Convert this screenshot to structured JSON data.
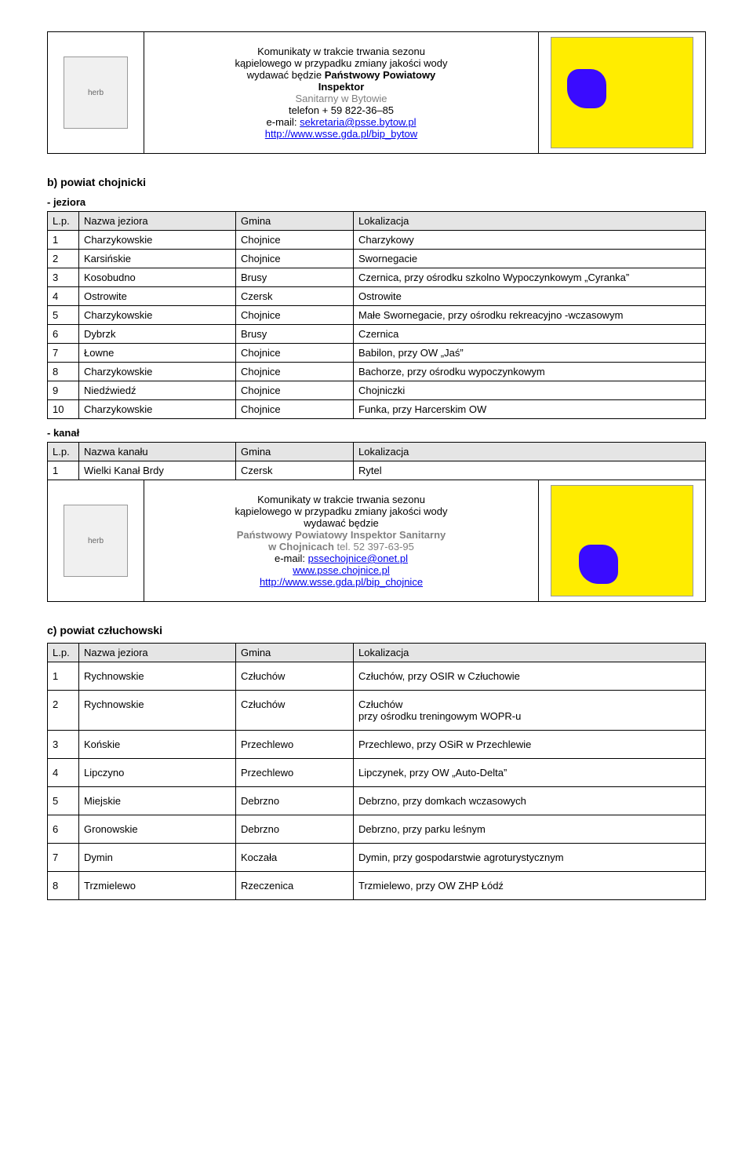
{
  "header_bytow": {
    "lines": [
      "Komunikaty w trakcie trwania sezonu",
      "kąpielowego w przypadku zmiany jakości wody",
      "wydawać będzie"
    ],
    "bold1": "Państwowy Powiatowy",
    "bold2": "Inspektor",
    "grey": "Sanitarny  w Bytowie",
    "tel": "telefon + 59 822-36–85",
    "email_label": "e-mail: ",
    "email_link": "sekretaria@psse.bytow.pl",
    "url": "http://www.wsse.gda.pl/bip_bytow",
    "coat_alt": "herb",
    "map_alt": "mapa"
  },
  "chojnice": {
    "title": "b) powiat chojnicki",
    "sub_jeziora": "- jeziora",
    "sub_kanal": "- kanał",
    "headers": {
      "lp": "L.p.",
      "nazwa_j": "Nazwa jeziora",
      "nazwa_k": "Nazwa kanału",
      "gmina": "Gmina",
      "lok": "Lokalizacja"
    },
    "jeziora": [
      {
        "n": "1",
        "nazwa": "Charzykowskie",
        "gmina": "Chojnice",
        "lok": "Charzykowy"
      },
      {
        "n": "2",
        "nazwa": "Karsińskie",
        "gmina": "Chojnice",
        "lok": "Swornegacie"
      },
      {
        "n": "3",
        "nazwa": "Kosobudno",
        "gmina": "Brusy",
        "lok": "Czernica, przy ośrodku szkolno Wypoczynkowym „Cyranka”"
      },
      {
        "n": "4",
        "nazwa": "Ostrowite",
        "gmina": "Czersk",
        "lok": "Ostrowite"
      },
      {
        "n": "5",
        "nazwa": "Charzykowskie",
        "gmina": "Chojnice",
        "lok": "Małe Swornegacie, przy ośrodku rekreacyjno -wczasowym"
      },
      {
        "n": "6",
        "nazwa": "Dybrzk",
        "gmina": "Brusy",
        "lok": "Czernica"
      },
      {
        "n": "7",
        "nazwa": "Łowne",
        "gmina": "Chojnice",
        "lok": "Babilon, przy OW „Jaś”"
      },
      {
        "n": "8",
        "nazwa": "Charzykowskie",
        "gmina": "Chojnice",
        "lok": "Bachorze, przy ośrodku wypoczynkowym"
      },
      {
        "n": "9",
        "nazwa": "Niedźwiedź",
        "gmina": "Chojnice",
        "lok": "Chojniczki"
      },
      {
        "n": "10",
        "nazwa": "Charzykowskie",
        "gmina": "Chojnice",
        "lok": "Funka, przy Harcerskim OW"
      }
    ],
    "kanal": [
      {
        "n": "1",
        "nazwa": "Wielki Kanał Brdy",
        "gmina": "Czersk",
        "lok": "Rytel"
      }
    ]
  },
  "header_chojnice": {
    "l1": "Komunikaty w trakcie trwania sezonu",
    "l2": "kąpielowego w przypadku zmiany jakości wody",
    "l3": "wydawać będzie",
    "grey1": "Państwowy Powiatowy Inspektor Sanitarny",
    "grey2a": "w Chojnicach",
    "grey2b": " tel. 52 397-63-95",
    "email_label": "e-mail: ",
    "email_link": "pssechojnice@onet.pl",
    "url1": "www.psse.chojnice.pl",
    "url2": "http://www.wsse.gda.pl/bip_chojnice",
    "coat_alt": "herb",
    "map_alt": "mapa"
  },
  "czluchow": {
    "title": "c) powiat człuchowski",
    "headers": {
      "lp": "L.p.",
      "nazwa": "Nazwa jeziora",
      "gmina": "Gmina",
      "lok": "Lokalizacja"
    },
    "rows": [
      {
        "n": "1",
        "nazwa": "Rychnowskie",
        "gmina": "Człuchów",
        "lok": "Człuchów, przy OSIR w Człuchowie"
      },
      {
        "n": "2",
        "nazwa": "Rychnowskie",
        "gmina": "Człuchów",
        "lok": "Człuchów\nprzy ośrodku treningowym WOPR-u"
      },
      {
        "n": "3",
        "nazwa": "Końskie",
        "gmina": "Przechlewo",
        "lok": "Przechlewo, przy OSiR  w Przechlewie"
      },
      {
        "n": "4",
        "nazwa": "Lipczyno",
        "gmina": "Przechlewo",
        "lok": "Lipczynek, przy OW „Auto-Delta”"
      },
      {
        "n": "5",
        "nazwa": "Miejskie",
        "gmina": "Debrzno",
        "lok": "Debrzno, przy domkach wczasowych"
      },
      {
        "n": "6",
        "nazwa": "Gronowskie",
        "gmina": "Debrzno",
        "lok": "Debrzno, przy parku leśnym"
      },
      {
        "n": "7",
        "nazwa": "Dymin",
        "gmina": "Koczała",
        "lok": "Dymin, przy gospodarstwie agroturystycznym"
      },
      {
        "n": "8",
        "nazwa": "Trzmielewo",
        "gmina": "Rzeczenica",
        "lok": "Trzmielewo, przy OW ZHP Łódź"
      }
    ]
  }
}
